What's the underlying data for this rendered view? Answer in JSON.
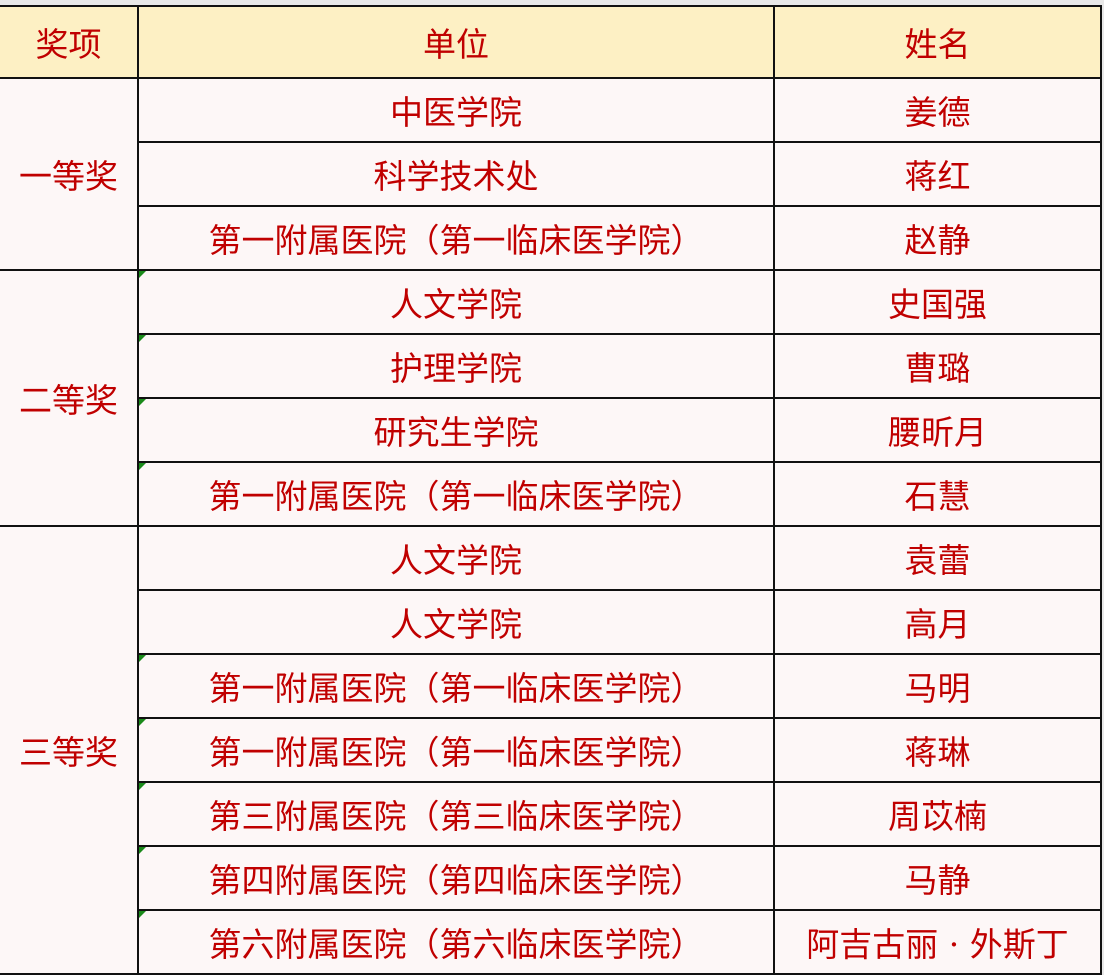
{
  "colors": {
    "text": "#c00000",
    "header_bg": "#fdf0c4",
    "body_bg": "#fdf7f7",
    "border": "#111111"
  },
  "headers": [
    "奖项",
    "单位",
    "姓名"
  ],
  "groups": [
    {
      "award": "一等奖",
      "rows": [
        {
          "unit": "中医学院",
          "name": "姜德"
        },
        {
          "unit": "科学技术处",
          "name": "蒋红"
        },
        {
          "unit": "第一附属医院（第一临床医学院）",
          "name": "赵静"
        }
      ]
    },
    {
      "award": "二等奖",
      "rows": [
        {
          "unit": "人文学院",
          "name": "史国强"
        },
        {
          "unit": "护理学院",
          "name": "曹璐"
        },
        {
          "unit": "研究生学院",
          "name": "腰昕月"
        },
        {
          "unit": "第一附属医院（第一临床医学院）",
          "name": "石慧"
        }
      ]
    },
    {
      "award": "三等奖",
      "rows": [
        {
          "unit": "人文学院",
          "name": "袁蕾"
        },
        {
          "unit": "人文学院",
          "name": "高月"
        },
        {
          "unit": "第一附属医院（第一临床医学院）",
          "name": "马明"
        },
        {
          "unit": "第一附属医院（第一临床医学院）",
          "name": "蒋琳"
        },
        {
          "unit": "第三附属医院（第三临床医学院）",
          "name": "周苡楠"
        },
        {
          "unit": "第四附属医院（第四临床医学院）",
          "name": "马静"
        },
        {
          "unit": "第六附属医院（第六临床医学院）",
          "name": "阿吉古丽 · 外斯丁"
        }
      ]
    }
  ]
}
